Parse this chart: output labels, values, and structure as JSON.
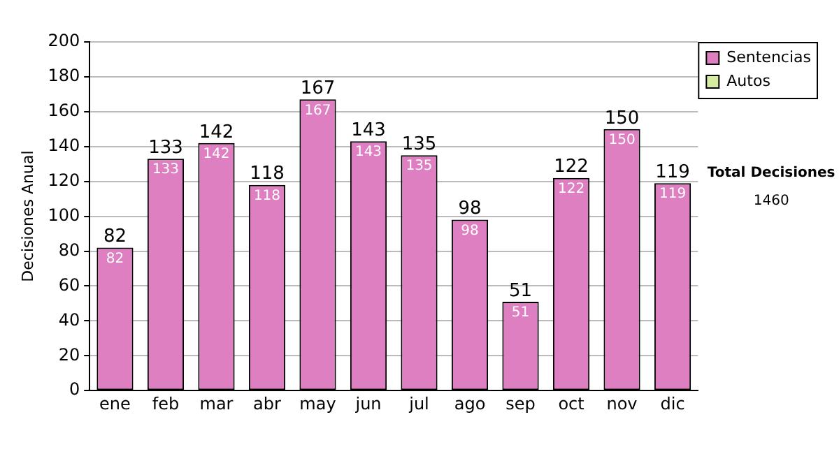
{
  "chart_data": {
    "type": "bar",
    "stacked": true,
    "ylabel": "Decisiones Anual",
    "categories": [
      "ene",
      "feb",
      "mar",
      "abr",
      "may",
      "jun",
      "jul",
      "ago",
      "sep",
      "oct",
      "nov",
      "dic"
    ],
    "series": [
      {
        "name": "Sentencias",
        "color": "#dd7fc0",
        "values": [
          82,
          133,
          142,
          118,
          167,
          143,
          135,
          98,
          51,
          122,
          150,
          119
        ],
        "value_labels": [
          "82",
          "133",
          "142",
          "118",
          "167",
          "143",
          "135",
          "98",
          "51",
          "122",
          "150",
          "119"
        ]
      },
      {
        "name": "Autos",
        "color": "#d6eca0",
        "values": [
          0,
          0,
          0,
          0,
          0,
          0,
          0,
          0,
          0,
          0,
          0,
          0
        ]
      }
    ],
    "totals": [
      "82",
      "133",
      "142",
      "118",
      "167",
      "143",
      "135",
      "98",
      "51",
      "122",
      "150",
      "119"
    ],
    "ylim": [
      0,
      200
    ],
    "yticks": [
      0,
      20,
      40,
      60,
      80,
      100,
      120,
      140,
      160,
      180,
      200
    ],
    "grid": "y",
    "legend": "right",
    "annotations": [
      "Total Decisiones",
      "1460"
    ]
  }
}
